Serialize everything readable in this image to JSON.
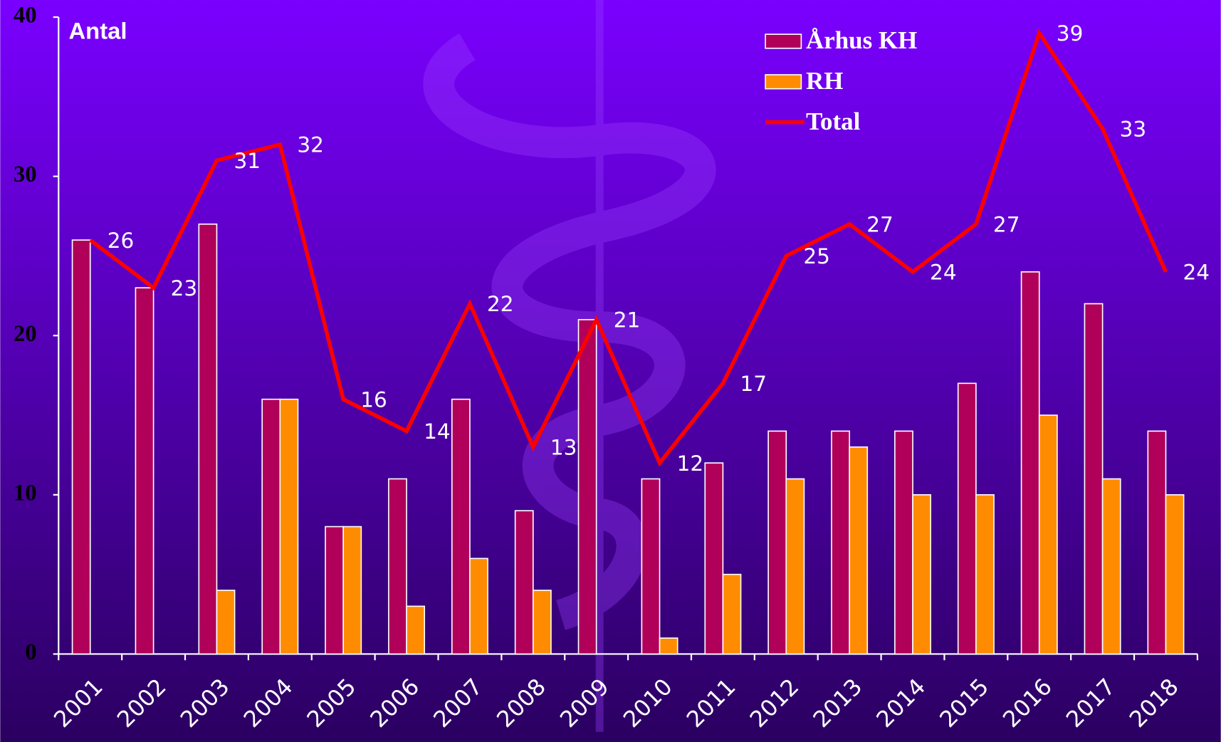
{
  "chart_data": {
    "type": "bar",
    "title": "Antal",
    "categories": [
      "2001",
      "2002",
      "2003",
      "2004",
      "2005",
      "2006",
      "2007",
      "2008",
      "2009",
      "2010",
      "2011",
      "2012",
      "2013",
      "2014",
      "2015",
      "2016",
      "2017",
      "2018"
    ],
    "series": [
      {
        "name": "Århus KH",
        "type": "bar",
        "color": "#b0005a",
        "values": [
          26,
          23,
          27,
          16,
          8,
          11,
          16,
          9,
          21,
          11,
          12,
          14,
          14,
          14,
          17,
          24,
          22,
          14
        ]
      },
      {
        "name": "RH",
        "type": "bar",
        "color": "#ff8c00",
        "values": [
          0,
          0,
          4,
          16,
          8,
          3,
          6,
          4,
          0,
          1,
          5,
          11,
          13,
          10,
          10,
          15,
          11,
          10
        ]
      },
      {
        "name": "Total",
        "type": "line",
        "color": "#ff0000",
        "values": [
          26,
          23,
          31,
          32,
          16,
          14,
          22,
          13,
          21,
          12,
          17,
          25,
          27,
          24,
          27,
          39,
          33,
          24
        ]
      }
    ],
    "ylim": [
      0,
      40
    ],
    "yticks": [
      0,
      10,
      20,
      30,
      40
    ],
    "legend": "top-right"
  }
}
